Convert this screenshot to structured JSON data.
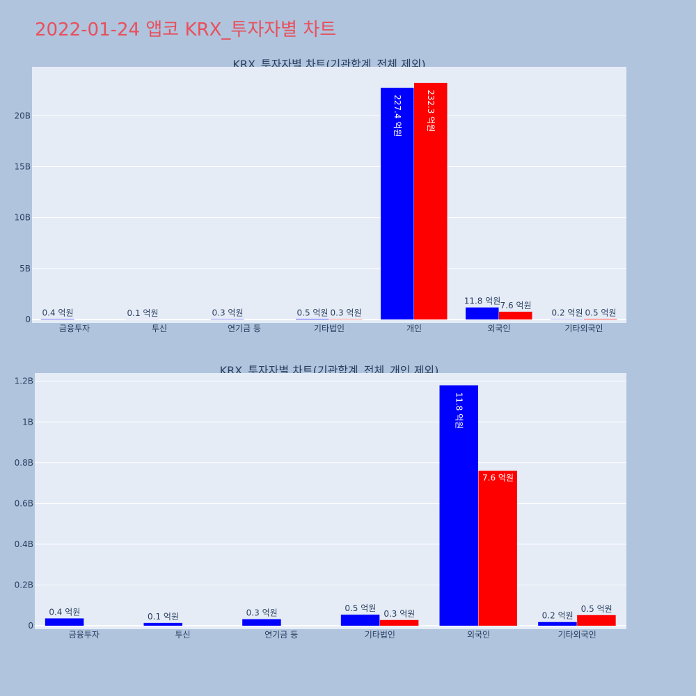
{
  "page_title": "2022-01-24 앱코 KRX_투자자별 차트",
  "colors": {
    "background": "#b0c4de",
    "plot_bg": "#e5ecf6",
    "title": "#e8505b",
    "series1": "#0000ff",
    "series2": "#ff0000"
  },
  "chart_data": [
    {
      "type": "bar",
      "title": "KRX_투자자별 차트(기관합계_전체 제외)",
      "categories": [
        "금융투자",
        "투신",
        "연기금 등",
        "기타법인",
        "개인",
        "외국인",
        "기타외국인"
      ],
      "yticks": [
        "0",
        "5B",
        "10B",
        "15B",
        "20B"
      ],
      "ylim": [
        0,
        24800000000
      ],
      "series": [
        {
          "values": [
            40000000,
            10000000,
            30000000,
            50000000,
            22740000000,
            1180000000,
            20000000
          ],
          "labels": [
            "0.4 억원",
            "0.1 억원",
            "0.3 억원",
            "0.5 억원",
            "227.4 억원",
            "11.8 억원",
            "0.2 억원"
          ]
        },
        {
          "values": [
            0,
            0,
            0,
            30000000,
            23230000000,
            760000000,
            50000000
          ],
          "labels": [
            "",
            "",
            "",
            "0.3 억원",
            "232.3 억원",
            "7.6 억원",
            "0.5 억원"
          ]
        }
      ]
    },
    {
      "type": "bar",
      "title": "KRX_투자자별 차트(기관합계_전체_개인 제외)",
      "categories": [
        "금융투자",
        "투신",
        "연기금 등",
        "기타법인",
        "외국인",
        "기타외국인"
      ],
      "yticks": [
        "0",
        "0.2B",
        "0.4B",
        "0.6B",
        "0.8B",
        "1B",
        "1.2B"
      ],
      "ylim": [
        0,
        1240000000
      ],
      "series": [
        {
          "values": [
            36000000,
            14000000,
            32000000,
            54000000,
            1180000000,
            18000000
          ],
          "labels": [
            "0.4 억원",
            "0.1 억원",
            "0.3 억원",
            "0.5 억원",
            "11.8 억원",
            "0.2 억원"
          ]
        },
        {
          "values": [
            0,
            0,
            0,
            28000000,
            760000000,
            52000000
          ],
          "labels": [
            "",
            "",
            "",
            "0.3 억원",
            "7.6 억원",
            "0.5 억원"
          ]
        }
      ]
    }
  ]
}
